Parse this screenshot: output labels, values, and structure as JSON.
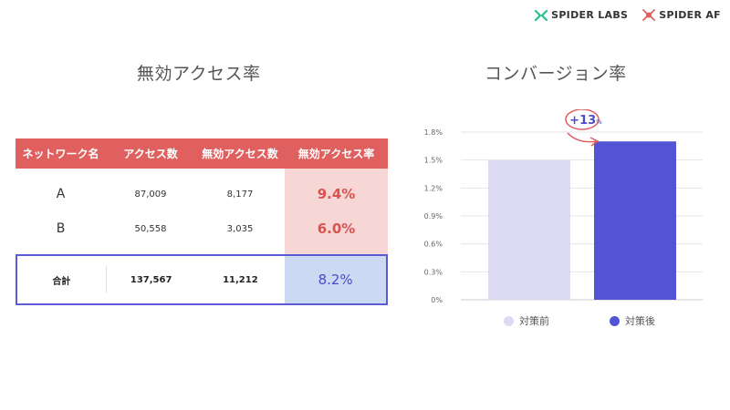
{
  "logos": {
    "spider_labs": "SPIDER LABS",
    "spider_af": "SPIDER AF"
  },
  "left": {
    "title": "無効アクセス率",
    "table": {
      "headers": [
        "ネットワーク名",
        "アクセス数",
        "無効アクセス数",
        "無効アクセス率"
      ],
      "rows": [
        {
          "network": "A",
          "access": "87,009",
          "invalid": "8,177",
          "rate": "9.4%"
        },
        {
          "network": "B",
          "access": "50,558",
          "invalid": "3,035",
          "rate": "6.0%"
        }
      ],
      "total": {
        "network": "合計",
        "access": "137,567",
        "invalid": "11,212",
        "rate": "8.2%"
      }
    }
  },
  "right": {
    "title": "コンバージョン率"
  },
  "colors": {
    "header_red": "#e05f5f",
    "rate_red": "#d9534f",
    "before_bar": "#dcdaf5",
    "after_bar": "#5353d6",
    "annotation": "#e05f5f",
    "annotation_text": "#4b4bc9"
  },
  "chart_data": {
    "type": "bar",
    "categories": [
      "対策前",
      "対策後"
    ],
    "values": [
      1.5,
      1.7
    ],
    "unit": "%",
    "ylim": [
      0,
      1.8
    ],
    "yticks": [
      0,
      0.3,
      0.6,
      0.9,
      1.2,
      1.5,
      1.8
    ],
    "ytick_labels": [
      "0%",
      "0.3%",
      "0.6%",
      "0.9%",
      "1.2%",
      "1.5%",
      "1.8%"
    ],
    "grid": true,
    "legend": [
      "対策前",
      "対策後"
    ],
    "legend_position": "bottom",
    "annotation": {
      "text": "+13",
      "suffix": "%"
    }
  }
}
